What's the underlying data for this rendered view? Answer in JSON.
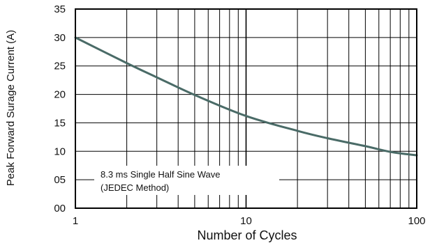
{
  "chart_data": {
    "type": "line",
    "title": "",
    "xlabel": "Number of Cycles",
    "ylabel": "Peak Forward Surage Current (A)",
    "x_scale": "log",
    "xlim": [
      1,
      100
    ],
    "ylim": [
      0,
      35
    ],
    "x_ticks": [
      "1",
      "10",
      "100"
    ],
    "y_ticks": [
      "00",
      "05",
      "10",
      "15",
      "20",
      "25",
      "30",
      "35"
    ],
    "y_tick_values": [
      0,
      5,
      10,
      15,
      20,
      25,
      30,
      35
    ],
    "grid": true,
    "annotation": [
      "8.3 ms Single Half Sine Wave",
      "(JEDEC Method)"
    ],
    "series": [
      {
        "x": [
          1,
          2,
          3,
          5,
          10,
          20,
          30,
          50,
          70,
          100
        ],
        "y": [
          30,
          25.5,
          23,
          19.9,
          16.2,
          13.6,
          12.3,
          10.9,
          9.9,
          9.3
        ],
        "color": "#4a6b67"
      }
    ]
  }
}
